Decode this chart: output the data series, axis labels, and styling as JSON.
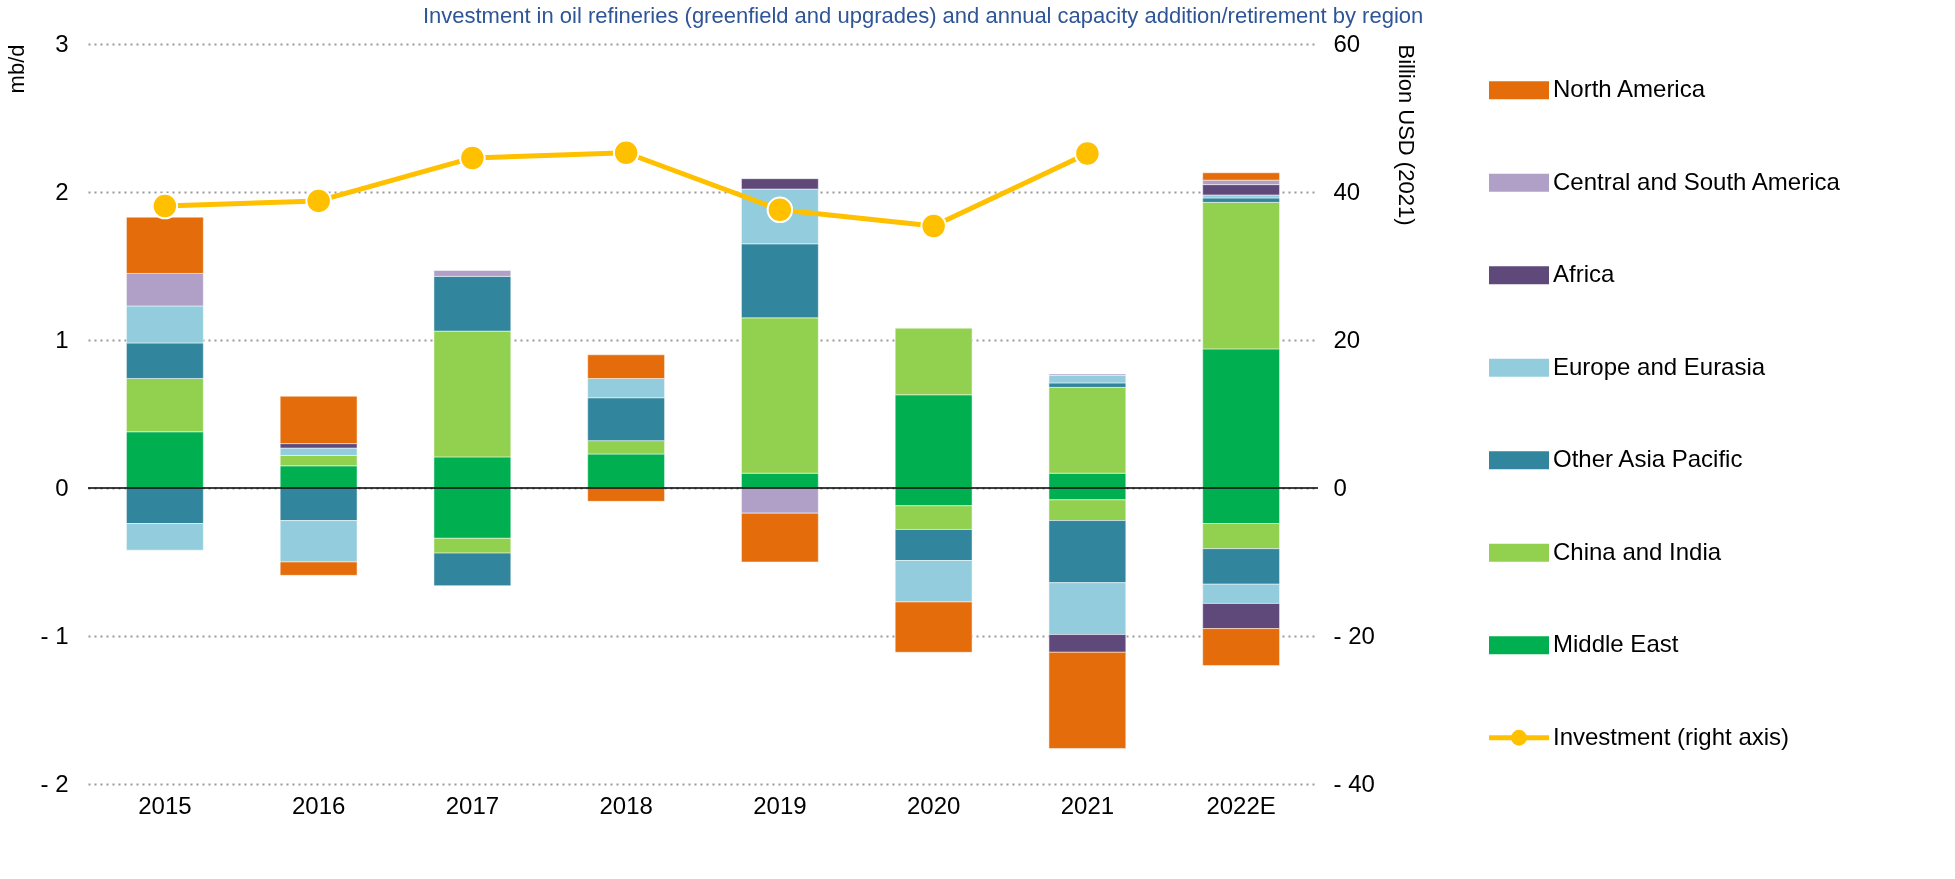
{
  "chart_data": {
    "type": "bar",
    "stacked": true,
    "title": "Investment in oil refineries (greenfield and upgrades) and annual capacity addition/retirement by region",
    "ylabel": "mb/d",
    "y2label": "Billion USD (2021)",
    "categories": [
      "2015",
      "2016",
      "2017",
      "2018",
      "2019",
      "2020",
      "2021",
      "2022E"
    ],
    "ylim": [
      -2,
      3
    ],
    "yticks": [
      {
        "value": -2,
        "label": "- 2"
      },
      {
        "value": -1,
        "label": "- 1"
      },
      0,
      1,
      2,
      3
    ],
    "y2lim": [
      -40,
      60
    ],
    "y2ticks": [
      {
        "value": -40,
        "label": "- 40"
      },
      {
        "value": -20,
        "label": "- 20"
      },
      0,
      20,
      40,
      60
    ],
    "grid": "y",
    "legend": "right",
    "ref_lines": [
      {
        "axis": "y",
        "value": 0,
        "color": "#000000"
      }
    ],
    "series": [
      {
        "name": "Middle East",
        "color": "#00b050",
        "values": [
          0.38,
          0.15,
          0.21,
          0.23,
          0.1,
          0.63,
          0.1,
          0.94
        ]
      },
      {
        "color": "#00b050",
        "values": [
          null,
          null,
          -0.34,
          null,
          null,
          -0.12,
          -0.08,
          -0.24
        ]
      },
      {
        "name": "China and India",
        "color": "#92d050",
        "values": [
          0.36,
          0.07,
          0.85,
          0.09,
          1.05,
          0.45,
          0.58,
          0.99
        ]
      },
      {
        "color": "#92d050",
        "values": [
          null,
          null,
          -0.1,
          null,
          null,
          -0.16,
          -0.14,
          -0.17
        ]
      },
      {
        "name": "Other Asia Pacific",
        "color": "#31859c",
        "values": [
          0.24,
          null,
          0.37,
          0.29,
          0.5,
          null,
          0.03,
          0.03
        ]
      },
      {
        "color": "#31859c",
        "values": [
          -0.24,
          -0.22,
          -0.22,
          null,
          null,
          -0.21,
          -0.42,
          -0.24
        ]
      },
      {
        "name": "Europe and Eurasia",
        "color": "#93cddd",
        "values": [
          0.25,
          0.05,
          null,
          0.13,
          0.37,
          null,
          0.05,
          0.02
        ]
      },
      {
        "color": "#93cddd",
        "values": [
          -0.18,
          -0.28,
          null,
          null,
          null,
          -0.28,
          -0.35,
          -0.13
        ]
      },
      {
        "name": "Africa",
        "color": "#5f497a",
        "values": [
          null,
          0.03,
          null,
          null,
          0.07,
          null,
          null,
          0.07
        ]
      },
      {
        "color": "#5f497a",
        "values": [
          null,
          null,
          null,
          null,
          null,
          null,
          -0.12,
          -0.17
        ]
      },
      {
        "name": "Central and South America",
        "color": "#b0a0c8",
        "values": [
          0.22,
          null,
          0.04,
          null,
          null,
          null,
          0.01,
          0.03
        ]
      },
      {
        "color": "#b0a0c8",
        "values": [
          null,
          null,
          null,
          null,
          -0.17,
          null,
          null,
          null
        ]
      },
      {
        "name": "North America",
        "color": "#e46c0a",
        "values": [
          0.38,
          0.32,
          null,
          0.16,
          null,
          null,
          null,
          0.05
        ]
      },
      {
        "color": "#e46c0a",
        "values": [
          null,
          -0.09,
          null,
          -0.09,
          -0.33,
          -0.34,
          -0.65,
          -0.25
        ]
      },
      {
        "name": "Investment (right axis)",
        "type": "line",
        "axis": "y2",
        "color": "#ffc000",
        "marker": "circle",
        "values": [
          38.1,
          38.8,
          44.6,
          45.3,
          37.6,
          35.4,
          45.2,
          null
        ]
      }
    ]
  }
}
